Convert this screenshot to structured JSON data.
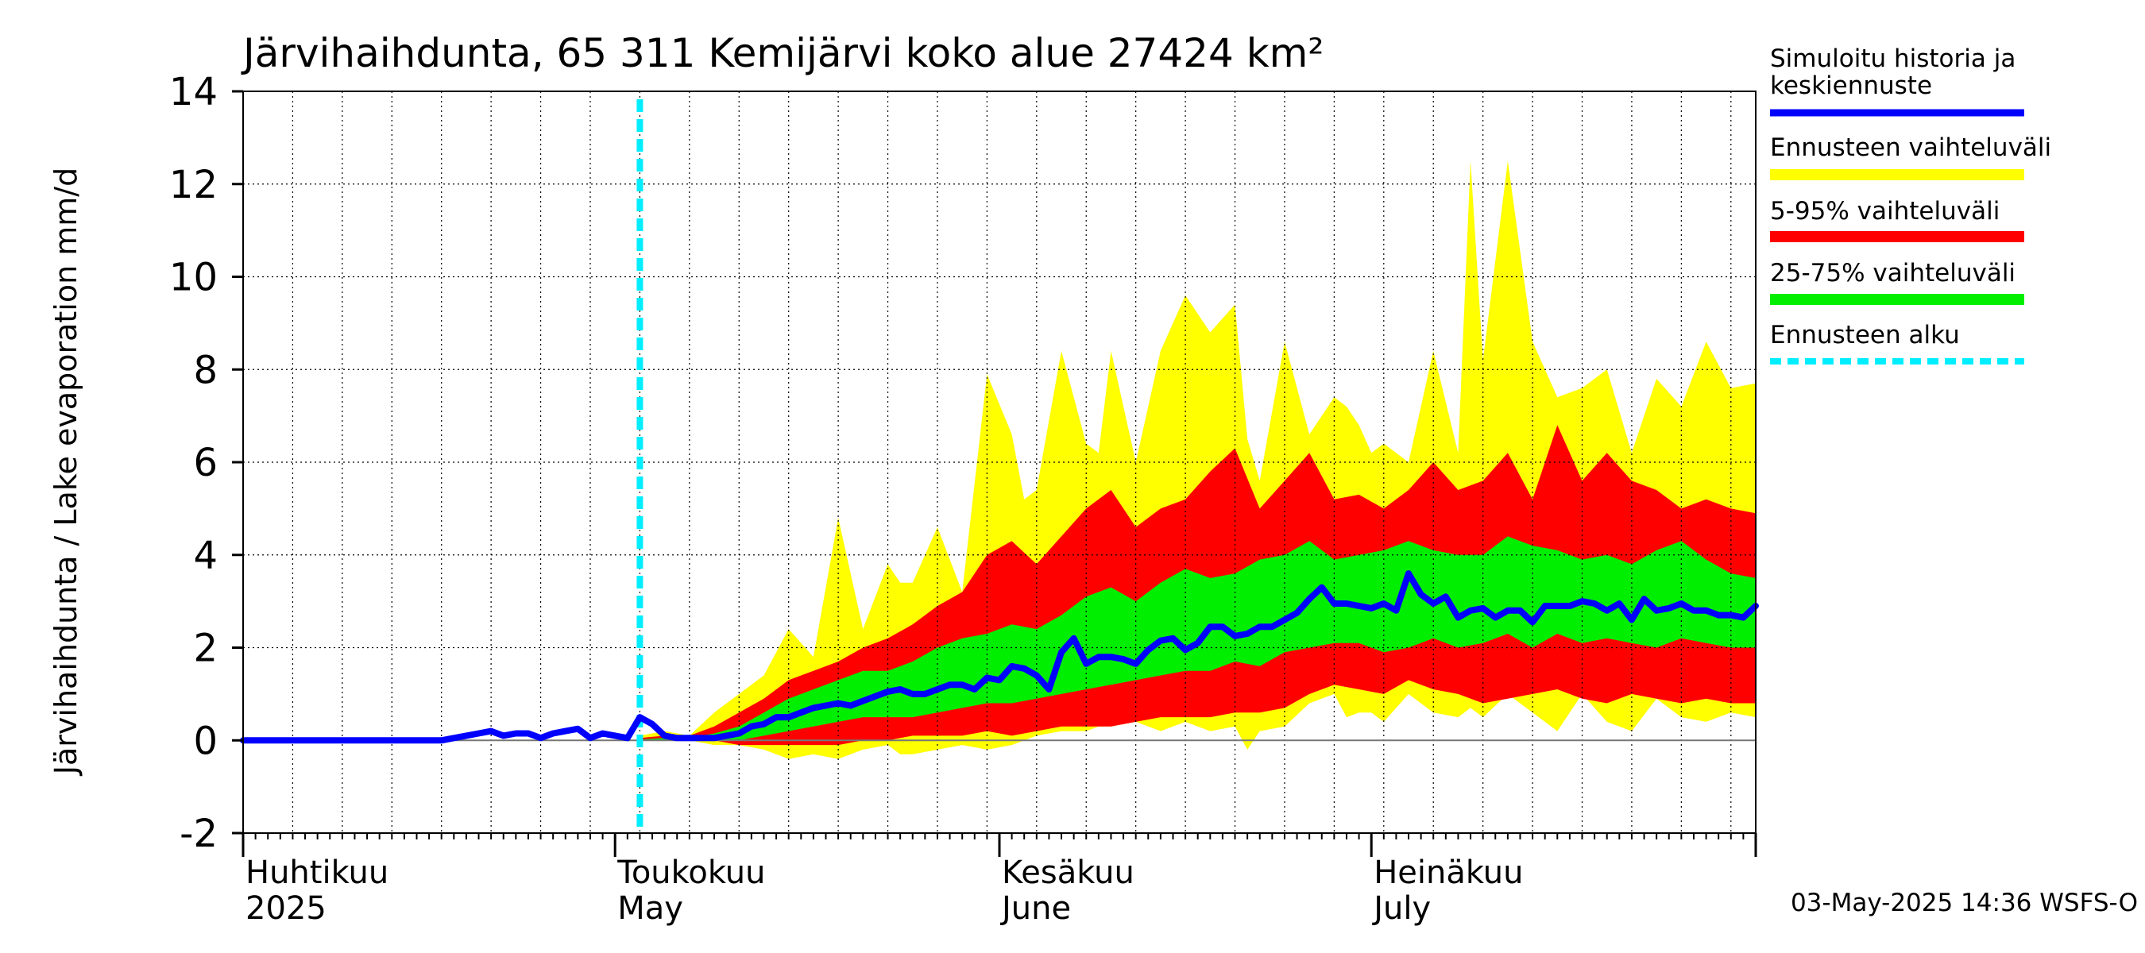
{
  "chart_data": {
    "type": "area",
    "title": "Järvihaihdunta, 65 311 Kemijärvi koko alue 27424 km²",
    "ylabel": "Järvihaihdunta / Lake evaporation   mm/d",
    "xlabel": "",
    "ylim": [
      -2,
      14
    ],
    "y_ticks": [
      -2,
      0,
      2,
      4,
      6,
      8,
      10,
      12,
      14
    ],
    "y_tick_labels": [
      "-2",
      "0",
      "2",
      "4",
      "6",
      "8",
      "10",
      "12",
      "14"
    ],
    "x_range_days": [
      0,
      122
    ],
    "forecast_start_day": 32,
    "month_boundaries_days": [
      0,
      30,
      61,
      91,
      122
    ],
    "months": [
      {
        "day": 0,
        "fi": "Huhtikuu",
        "en": "2025"
      },
      {
        "day": 30,
        "fi": "Toukokuu",
        "en": "May"
      },
      {
        "day": 61,
        "fi": "Kesäkuu",
        "en": "June"
      },
      {
        "day": 91,
        "fi": "Heinäkuu",
        "en": "July"
      }
    ],
    "legend": [
      {
        "label": "Simuloitu historia ja keskiennuste",
        "color": "#0000ff",
        "style": "line"
      },
      {
        "label": "Ennusteen vaihteluväli",
        "color": "#ffff00",
        "style": "band"
      },
      {
        "label": "5-95% vaihteluväli",
        "color": "#ff0000",
        "style": "band"
      },
      {
        "label": "25-75% vaihteluväli",
        "color": "#00ee00",
        "style": "band"
      },
      {
        "label": "Ennusteen alku",
        "color": "#00eeff",
        "style": "dashed"
      }
    ],
    "series": [
      {
        "name": "Ennusteen vaihteluväli",
        "color": "#ffff00",
        "x": [
          32,
          34,
          36,
          38,
          40,
          42,
          44,
          46,
          48,
          50,
          52,
          53,
          54,
          56,
          58,
          60,
          62,
          63,
          64,
          66,
          68,
          69,
          70,
          72,
          74,
          76,
          78,
          80,
          81,
          82,
          84,
          86,
          88,
          89,
          90,
          91,
          92,
          94,
          96,
          98,
          99,
          100,
          102,
          104,
          106,
          108,
          110,
          112,
          114,
          116,
          118,
          120,
          122
        ],
        "upper": [
          0.1,
          0.2,
          0.1,
          0.6,
          1.0,
          1.4,
          2.4,
          1.8,
          4.8,
          2.4,
          3.8,
          3.4,
          3.4,
          4.6,
          3.2,
          7.9,
          6.6,
          5.2,
          5.4,
          8.4,
          6.4,
          6.2,
          8.4,
          6.0,
          8.4,
          9.6,
          8.8,
          9.4,
          6.5,
          5.6,
          8.6,
          6.6,
          7.4,
          7.2,
          6.8,
          6.2,
          6.4,
          6.0,
          8.4,
          6.2,
          12.5,
          8.2,
          12.5,
          8.6,
          7.4,
          7.6,
          8.0,
          6.2,
          7.8,
          7.2,
          8.6,
          7.6,
          7.7
        ],
        "lower": [
          0.0,
          0.0,
          0.0,
          -0.1,
          -0.1,
          -0.2,
          -0.4,
          -0.3,
          -0.4,
          -0.2,
          -0.1,
          -0.3,
          -0.3,
          -0.2,
          -0.1,
          -0.2,
          -0.1,
          0.0,
          0.1,
          0.2,
          0.2,
          0.3,
          0.3,
          0.4,
          0.2,
          0.4,
          0.2,
          0.3,
          -0.2,
          0.2,
          0.3,
          0.8,
          1.0,
          0.5,
          0.6,
          0.6,
          0.4,
          1.0,
          0.6,
          0.5,
          0.7,
          0.5,
          1.0,
          0.6,
          0.2,
          1.0,
          0.4,
          0.2,
          0.9,
          0.5,
          0.4,
          0.6,
          0.5
        ]
      },
      {
        "name": "5-95% vaihteluväli",
        "color": "#ff0000",
        "x": [
          32,
          34,
          36,
          38,
          40,
          42,
          44,
          46,
          48,
          50,
          52,
          54,
          56,
          58,
          60,
          62,
          64,
          66,
          68,
          70,
          72,
          74,
          76,
          78,
          80,
          82,
          84,
          86,
          88,
          90,
          92,
          94,
          96,
          98,
          100,
          102,
          104,
          106,
          108,
          110,
          112,
          114,
          116,
          118,
          120,
          122
        ],
        "upper": [
          0.05,
          0.1,
          0.1,
          0.3,
          0.6,
          0.9,
          1.3,
          1.5,
          1.7,
          2.0,
          2.2,
          2.5,
          2.9,
          3.2,
          4.0,
          4.3,
          3.8,
          4.4,
          5.0,
          5.4,
          4.6,
          5.0,
          5.2,
          5.8,
          6.3,
          5.0,
          5.6,
          6.2,
          5.2,
          5.3,
          5.0,
          5.4,
          6.0,
          5.4,
          5.6,
          6.2,
          5.2,
          6.8,
          5.6,
          6.2,
          5.6,
          5.4,
          5.0,
          5.2,
          5.0,
          4.9
        ],
        "lower": [
          0.0,
          0.0,
          0.0,
          0.0,
          -0.1,
          -0.1,
          -0.1,
          -0.1,
          -0.1,
          0.0,
          0.0,
          0.1,
          0.1,
          0.1,
          0.2,
          0.1,
          0.2,
          0.3,
          0.3,
          0.3,
          0.4,
          0.5,
          0.5,
          0.5,
          0.6,
          0.6,
          0.7,
          1.0,
          1.2,
          1.1,
          1.0,
          1.3,
          1.1,
          1.0,
          0.8,
          0.9,
          1.0,
          1.1,
          0.9,
          0.8,
          1.0,
          0.9,
          0.8,
          0.9,
          0.8,
          0.8
        ]
      },
      {
        "name": "25-75% vaihteluväli",
        "color": "#00ee00",
        "x": [
          32,
          34,
          36,
          38,
          40,
          42,
          44,
          46,
          48,
          50,
          52,
          54,
          56,
          58,
          60,
          62,
          64,
          66,
          68,
          70,
          72,
          74,
          76,
          78,
          80,
          82,
          84,
          86,
          88,
          90,
          92,
          94,
          96,
          98,
          100,
          102,
          104,
          106,
          108,
          110,
          112,
          114,
          116,
          118,
          120,
          122
        ],
        "upper": [
          0.02,
          0.05,
          0.05,
          0.15,
          0.3,
          0.6,
          0.9,
          1.1,
          1.3,
          1.5,
          1.5,
          1.7,
          2.0,
          2.2,
          2.3,
          2.5,
          2.4,
          2.7,
          3.1,
          3.3,
          3.0,
          3.4,
          3.7,
          3.5,
          3.6,
          3.9,
          4.0,
          4.3,
          3.9,
          4.0,
          4.1,
          4.3,
          4.1,
          4.0,
          4.0,
          4.4,
          4.2,
          4.1,
          3.9,
          4.0,
          3.8,
          4.1,
          4.3,
          3.9,
          3.6,
          3.5
        ],
        "lower": [
          0.0,
          0.0,
          0.0,
          0.0,
          0.0,
          0.1,
          0.2,
          0.3,
          0.4,
          0.5,
          0.5,
          0.5,
          0.6,
          0.7,
          0.8,
          0.8,
          0.9,
          1.0,
          1.1,
          1.2,
          1.3,
          1.4,
          1.5,
          1.5,
          1.7,
          1.6,
          1.9,
          2.0,
          2.1,
          2.1,
          1.9,
          2.0,
          2.2,
          2.0,
          2.1,
          2.3,
          2.0,
          2.3,
          2.1,
          2.2,
          2.1,
          2.0,
          2.2,
          2.1,
          2.0,
          2.0
        ]
      },
      {
        "name": "Simuloitu historia ja keskiennuste",
        "color": "#0000ff",
        "x": [
          0,
          1,
          2,
          3,
          4,
          5,
          6,
          7,
          8,
          9,
          10,
          11,
          12,
          13,
          14,
          15,
          16,
          17,
          18,
          19,
          20,
          21,
          22,
          23,
          24,
          25,
          26,
          27,
          28,
          29,
          30,
          31,
          32,
          33,
          34,
          35,
          36,
          37,
          38,
          39,
          40,
          41,
          42,
          43,
          44,
          45,
          46,
          47,
          48,
          49,
          50,
          51,
          52,
          53,
          54,
          55,
          56,
          57,
          58,
          59,
          60,
          61,
          62,
          63,
          64,
          65,
          66,
          67,
          68,
          69,
          70,
          71,
          72,
          73,
          74,
          75,
          76,
          77,
          78,
          79,
          80,
          81,
          82,
          83,
          84,
          85,
          86,
          87,
          88,
          89,
          90,
          91,
          92,
          93,
          94,
          95,
          96,
          97,
          98,
          99,
          100,
          101,
          102,
          103,
          104,
          105,
          106,
          107,
          108,
          109,
          110,
          111,
          112,
          113,
          114,
          115,
          116,
          117,
          118,
          119,
          120,
          121,
          122
        ],
        "y": [
          0.0,
          0.0,
          0.0,
          0.0,
          0.0,
          0.0,
          0.0,
          0.0,
          0.0,
          0.0,
          0.0,
          0.0,
          0.0,
          0.0,
          0.0,
          0.0,
          0.0,
          0.05,
          0.1,
          0.15,
          0.2,
          0.1,
          0.15,
          0.15,
          0.05,
          0.15,
          0.2,
          0.25,
          0.05,
          0.15,
          0.1,
          0.05,
          0.5,
          0.35,
          0.1,
          0.05,
          0.05,
          0.05,
          0.05,
          0.1,
          0.15,
          0.3,
          0.35,
          0.5,
          0.5,
          0.6,
          0.7,
          0.75,
          0.8,
          0.75,
          0.85,
          0.95,
          1.05,
          1.1,
          1.0,
          1.0,
          1.1,
          1.2,
          1.2,
          1.1,
          1.35,
          1.3,
          1.6,
          1.55,
          1.4,
          1.1,
          1.9,
          2.2,
          1.65,
          1.8,
          1.8,
          1.75,
          1.65,
          1.95,
          2.15,
          2.2,
          1.95,
          2.1,
          2.45,
          2.45,
          2.25,
          2.3,
          2.45,
          2.45,
          2.6,
          2.75,
          3.05,
          3.3,
          2.95,
          2.95,
          2.9,
          2.85,
          2.95,
          2.8,
          3.6,
          3.15,
          2.95,
          3.1,
          2.65,
          2.8,
          2.85,
          2.65,
          2.8,
          2.8,
          2.55,
          2.9,
          2.9,
          2.9,
          3.0,
          2.95,
          2.8,
          2.95,
          2.6,
          3.05,
          2.8,
          2.85,
          2.95,
          2.8,
          2.8,
          2.7,
          2.7,
          2.65,
          2.9
        ]
      }
    ]
  },
  "footer": {
    "timestamp": "03-May-2025 14:36 WSFS-O"
  }
}
